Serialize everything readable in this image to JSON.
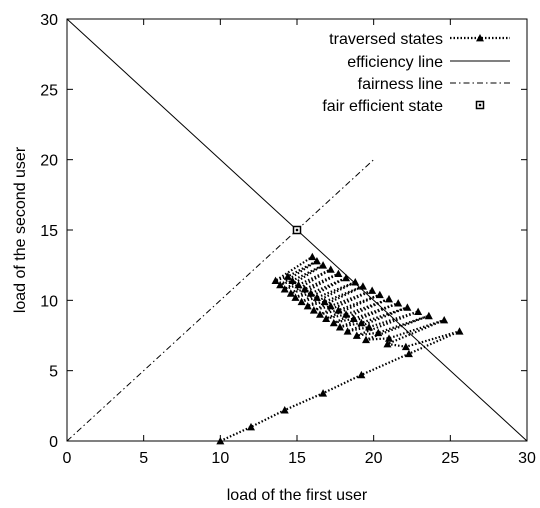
{
  "chart_data": {
    "type": "line",
    "title": "",
    "xlabel": "load of the first user",
    "ylabel": "load of the second user",
    "xlim": [
      0,
      30
    ],
    "ylim": [
      0,
      30
    ],
    "xticks": [
      "0",
      "5",
      "10",
      "15",
      "20",
      "25",
      "30"
    ],
    "yticks": [
      "0",
      "5",
      "10",
      "15",
      "20",
      "25",
      "30"
    ],
    "grid": false,
    "legend_position": "top-right",
    "series": [
      {
        "name": "traversed states",
        "style": "dotted-with-triangles",
        "x": [
          10,
          12,
          14.2,
          16.7,
          19.2,
          22.3,
          25.6,
          22.1,
          20.9,
          24.6,
          21,
          19.5,
          23.6,
          20.3,
          18.9,
          22.9,
          19.7,
          18.3,
          22.2,
          19.2,
          17.8,
          21.6,
          18.7,
          17.4,
          21,
          18.2,
          16.9,
          20.4,
          17.7,
          16.5,
          19.9,
          17.2,
          16.1,
          19.3,
          16.8,
          15.7,
          18.8,
          16.3,
          15.3,
          18.2,
          15.9,
          14.9,
          17.7,
          15.5,
          14.6,
          17.2,
          15.1,
          14.2,
          16.7,
          14.7,
          13.9,
          16.3,
          14.4,
          13.6,
          16
        ],
        "y": [
          0,
          1,
          2.2,
          3.4,
          4.7,
          6.2,
          7.8,
          6.7,
          6.9,
          8.6,
          7.3,
          7.2,
          8.9,
          7.7,
          7.5,
          9.2,
          8.1,
          7.8,
          9.5,
          8.4,
          8.1,
          9.8,
          8.7,
          8.4,
          10.1,
          9,
          8.7,
          10.4,
          9.3,
          9,
          10.7,
          9.6,
          9.3,
          11,
          9.9,
          9.6,
          11.3,
          10.2,
          9.9,
          11.6,
          10.5,
          10.2,
          11.9,
          10.8,
          10.5,
          12.2,
          11.1,
          10.8,
          12.5,
          11.4,
          11.1,
          12.8,
          11.7,
          11.4,
          13.1
        ]
      },
      {
        "name": "efficiency line",
        "style": "solid",
        "x": [
          0,
          30
        ],
        "y": [
          30,
          0
        ]
      },
      {
        "name": "fairness line",
        "style": "dash-dot",
        "x": [
          0,
          20
        ],
        "y": [
          0,
          20
        ]
      },
      {
        "name": "fair efficient state",
        "style": "square-marker",
        "x": [
          15
        ],
        "y": [
          15
        ]
      }
    ]
  }
}
